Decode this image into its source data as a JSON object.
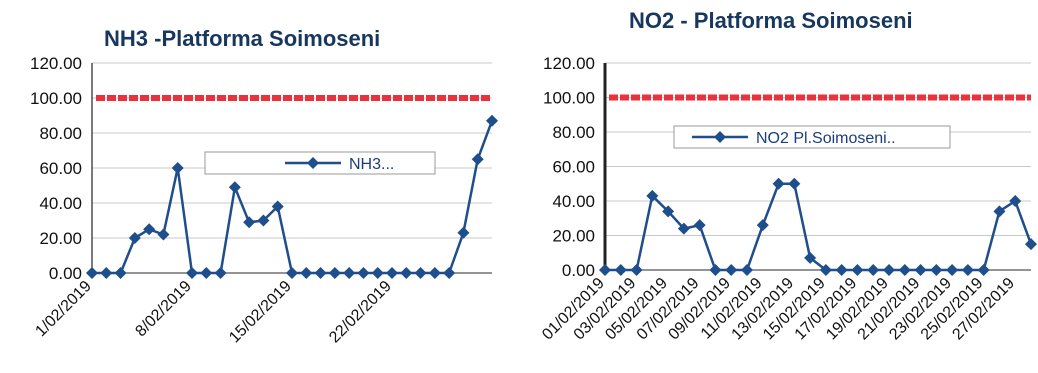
{
  "chart_data": [
    {
      "type": "line",
      "title": "NH3 -Platforma Soimoseni",
      "xlabel": "",
      "ylabel": "",
      "ylim": [
        0,
        120
      ],
      "yticks": [
        "120.00",
        "100.00",
        "80.00",
        "60.00",
        "40.00",
        "20.00",
        "0.00"
      ],
      "x_tick_labels": [
        "1/02/2019",
        "8/02/2019",
        "15/02/2019",
        "22/02/2019"
      ],
      "x_tick_days": [
        1,
        8,
        15,
        22
      ],
      "grid": true,
      "legend_placement": "center-right",
      "limit_line": 100,
      "limit_color": "#e8323c",
      "series": [
        {
          "name": "NH3...",
          "color": "#1f4e8c",
          "x": [
            1,
            2,
            3,
            4,
            5,
            6,
            7,
            8,
            9,
            10,
            11,
            12,
            13,
            14,
            15,
            16,
            17,
            18,
            19,
            20,
            21,
            22,
            23,
            24,
            25,
            26,
            27,
            28,
            29
          ],
          "values": [
            0,
            0,
            0,
            20,
            25,
            22,
            60,
            0,
            0,
            0,
            49,
            29,
            30,
            38,
            0,
            0,
            0,
            0,
            0,
            0,
            0,
            0,
            0,
            0,
            0,
            0,
            23,
            65,
            87
          ]
        }
      ]
    },
    {
      "type": "line",
      "title": "NO2 - Platforma Soimoseni",
      "xlabel": "",
      "ylabel": "",
      "ylim": [
        0,
        120
      ],
      "yticks": [
        "120.00",
        "100.00",
        "80.00",
        "60.00",
        "40.00",
        "20.00",
        "0.00"
      ],
      "x_tick_labels": [
        "01/02/2019",
        "03/02/2019",
        "05/02/2019",
        "07/02/2019",
        "09/02/2019",
        "11/02/2019",
        "13/02/2019",
        "15/02/2019",
        "17/02/2019",
        "19/02/2019",
        "21/02/2019",
        "23/02/2019",
        "25/02/2019",
        "27/02/2019"
      ],
      "x_tick_days": [
        1,
        3,
        5,
        7,
        9,
        11,
        13,
        15,
        17,
        19,
        21,
        23,
        25,
        27
      ],
      "grid": true,
      "legend_placement": "center",
      "limit_line": 100,
      "limit_color": "#e8323c",
      "series": [
        {
          "name": "NO2 Pl.Soimoseni..",
          "color": "#1f4e8c",
          "x": [
            1,
            2,
            3,
            4,
            5,
            6,
            7,
            8,
            9,
            10,
            11,
            12,
            13,
            14,
            15,
            16,
            17,
            18,
            19,
            20,
            21,
            22,
            23,
            24,
            25,
            26,
            27,
            28
          ],
          "values": [
            0,
            0,
            0,
            43,
            34,
            24,
            26,
            0,
            0,
            0,
            26,
            50,
            50,
            7,
            0,
            0,
            0,
            0,
            0,
            0,
            0,
            0,
            0,
            0,
            0,
            34,
            40,
            15
          ]
        }
      ]
    }
  ]
}
